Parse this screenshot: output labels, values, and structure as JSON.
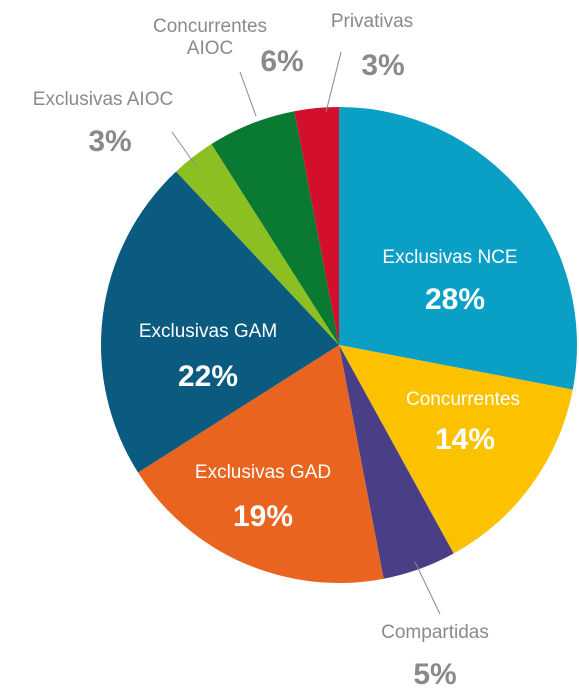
{
  "chart_data": {
    "type": "pie",
    "categories": [
      "Exclusivas NCE",
      "Concurrentes",
      "Compartidas",
      "Exclusivas GAD",
      "Exclusivas GAM",
      "Exclusivas AIOC",
      "Concurrentes AIOC",
      "Privativas"
    ],
    "values": [
      28,
      14,
      5,
      19,
      22,
      3,
      6,
      3
    ],
    "value_labels": [
      "28%",
      "14%",
      "5%",
      "19%",
      "22%",
      "3%",
      "6%",
      "3%"
    ],
    "colors": [
      "#0a9fc4",
      "#fcc200",
      "#4a3f86",
      "#e8641f",
      "#0b5a80",
      "#8cbf21",
      "#0a7a32",
      "#d3102c"
    ]
  }
}
